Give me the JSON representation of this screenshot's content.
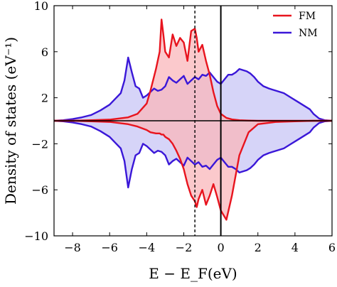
{
  "chart_data": {
    "type": "area",
    "xlabel": "E − E_F(eV)",
    "ylabel": "Density of states (eV⁻¹)",
    "xlim": [
      -9,
      6
    ],
    "ylim": [
      -10,
      10
    ],
    "xticks": [
      -8,
      -6,
      -4,
      -2,
      0,
      2,
      4,
      6
    ],
    "yticks": [
      -10,
      -6,
      -2,
      2,
      6,
      10
    ],
    "xtick_labels": [
      "−8",
      "−6",
      "−4",
      "−2",
      "0",
      "2",
      "4",
      "6"
    ],
    "ytick_labels": [
      "−10",
      "−6",
      "−2",
      "2",
      "6",
      "10"
    ],
    "legend_position": "top-right",
    "reference_lines": [
      {
        "x": 0,
        "style": "solid"
      },
      {
        "x": -1.4,
        "style": "dashed"
      },
      {
        "y": 0,
        "style": "solid"
      }
    ],
    "series": [
      {
        "name": "FM",
        "color": "#e8141e",
        "fill": "#f9b7bb",
        "x": [
          -9,
          -8,
          -7,
          -6,
          -5.5,
          -5,
          -4.5,
          -4,
          -3.8,
          -3.5,
          -3.3,
          -3.2,
          -3.1,
          -3.0,
          -2.8,
          -2.6,
          -2.4,
          -2.2,
          -2.0,
          -1.8,
          -1.6,
          -1.4,
          -1.3,
          -1.2,
          -1.0,
          -0.8,
          -0.6,
          -0.4,
          -0.2,
          0,
          0.3,
          0.6,
          1,
          1.5,
          2,
          3,
          4,
          5,
          6
        ],
        "up": [
          0,
          0,
          0.05,
          0.1,
          0.2,
          0.3,
          0.6,
          1.5,
          2.6,
          4.5,
          6.0,
          8.8,
          7.5,
          6.0,
          5.5,
          7.5,
          6.5,
          7.2,
          6.8,
          5.2,
          7.8,
          8.0,
          7.2,
          6.0,
          6.6,
          5.2,
          4.0,
          2.5,
          1.3,
          0.6,
          0.25,
          0.12,
          0.05,
          0.02,
          0,
          0,
          0,
          0,
          0
        ],
        "down": [
          0,
          0,
          -0.05,
          -0.1,
          -0.2,
          -0.3,
          -0.5,
          -0.8,
          -1.0,
          -1.1,
          -1.1,
          -1.2,
          -1.2,
          -1.4,
          -1.6,
          -2.0,
          -2.6,
          -3.3,
          -4.2,
          -5.5,
          -6.5,
          -7.0,
          -7.5,
          -6.8,
          -6.0,
          -7.3,
          -6.5,
          -5.5,
          -6.6,
          -7.8,
          -8.6,
          -6.5,
          -3.0,
          -1.0,
          -0.3,
          -0.1,
          -0.05,
          0,
          0
        ]
      },
      {
        "name": "NM",
        "color": "#3a17d8",
        "fill": "#c8c6f5",
        "x": [
          -9,
          -8.5,
          -8,
          -7.5,
          -7,
          -6.5,
          -6,
          -5.7,
          -5.4,
          -5.2,
          -5.0,
          -4.8,
          -4.6,
          -4.4,
          -4.2,
          -4.0,
          -3.8,
          -3.6,
          -3.4,
          -3.2,
          -3.0,
          -2.8,
          -2.6,
          -2.4,
          -2.2,
          -2.0,
          -1.8,
          -1.6,
          -1.4,
          -1.2,
          -1.0,
          -0.8,
          -0.6,
          -0.4,
          -0.2,
          0,
          0.2,
          0.4,
          0.6,
          0.8,
          1.0,
          1.2,
          1.4,
          1.6,
          1.8,
          2.0,
          2.3,
          2.6,
          3.0,
          3.4,
          3.8,
          4.2,
          4.5,
          4.8,
          5.0,
          5.3,
          5.6,
          6
        ],
        "up": [
          0,
          0.05,
          0.15,
          0.3,
          0.5,
          0.9,
          1.4,
          1.9,
          2.4,
          3.5,
          5.5,
          4.2,
          3.0,
          2.8,
          2.0,
          2.2,
          2.5,
          2.8,
          2.6,
          2.7,
          3.0,
          3.8,
          3.5,
          3.3,
          3.6,
          3.9,
          3.2,
          3.5,
          3.8,
          3.6,
          4.0,
          3.9,
          4.2,
          3.8,
          3.4,
          3.2,
          3.6,
          4.0,
          4.0,
          4.2,
          4.5,
          4.4,
          4.3,
          4.1,
          3.8,
          3.4,
          3.0,
          2.8,
          2.6,
          2.4,
          2.0,
          1.6,
          1.3,
          1.0,
          0.6,
          0.2,
          0.05,
          0
        ],
        "down": [
          0,
          -0.05,
          -0.15,
          -0.3,
          -0.5,
          -0.9,
          -1.4,
          -1.9,
          -2.4,
          -3.5,
          -5.8,
          -4.2,
          -3.0,
          -2.8,
          -2.0,
          -2.2,
          -2.5,
          -2.8,
          -2.6,
          -2.7,
          -3.0,
          -3.8,
          -3.5,
          -3.3,
          -3.6,
          -3.9,
          -3.2,
          -3.5,
          -3.8,
          -3.6,
          -4.0,
          -3.9,
          -4.2,
          -3.8,
          -3.4,
          -3.2,
          -3.6,
          -4.0,
          -4.0,
          -4.2,
          -4.5,
          -4.4,
          -4.3,
          -4.1,
          -3.8,
          -3.4,
          -3.0,
          -2.8,
          -2.6,
          -2.4,
          -2.0,
          -1.6,
          -1.3,
          -1.0,
          -0.6,
          -0.2,
          -0.05,
          0
        ]
      }
    ]
  }
}
